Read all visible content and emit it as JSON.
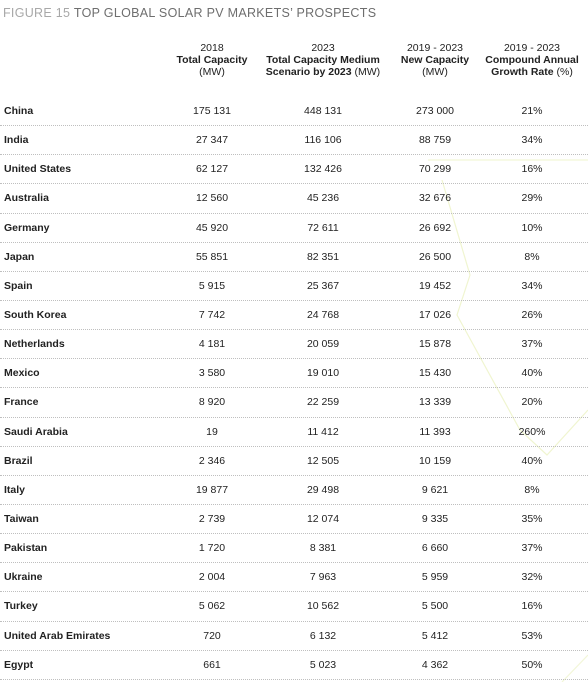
{
  "figure": {
    "label": "FIGURE 15",
    "title": "TOP GLOBAL SOLAR PV MARKETS’ PROSPECTS"
  },
  "columns": [
    {
      "year": "2018",
      "name": "Total Capacity",
      "unit": "(MW)"
    },
    {
      "year": "2023",
      "name": "Total Capacity Medium Scenario by 2023",
      "unit": "(MW)"
    },
    {
      "year": "2019 - 2023",
      "name": "New Capacity",
      "unit": "(MW)"
    },
    {
      "year": "2019 - 2023",
      "name": "Compound Annual Growth Rate",
      "unit": "(%)"
    }
  ],
  "rows": [
    {
      "country": "China",
      "total_2018": "175 131",
      "total_2023": "448 131",
      "new": "273 000",
      "cagr": "21%"
    },
    {
      "country": "India",
      "total_2018": "27 347",
      "total_2023": "116 106",
      "new": "88 759",
      "cagr": "34%"
    },
    {
      "country": "United States",
      "total_2018": "62 127",
      "total_2023": "132 426",
      "new": "70 299",
      "cagr": "16%"
    },
    {
      "country": "Australia",
      "total_2018": "12 560",
      "total_2023": "45 236",
      "new": "32 676",
      "cagr": "29%"
    },
    {
      "country": "Germany",
      "total_2018": "45 920",
      "total_2023": "72 611",
      "new": "26 692",
      "cagr": "10%"
    },
    {
      "country": "Japan",
      "total_2018": "55 851",
      "total_2023": "82 351",
      "new": "26 500",
      "cagr": "8%"
    },
    {
      "country": "Spain",
      "total_2018": "5 915",
      "total_2023": "25 367",
      "new": "19 452",
      "cagr": "34%"
    },
    {
      "country": "South Korea",
      "total_2018": "7 742",
      "total_2023": "24 768",
      "new": "17 026",
      "cagr": "26%"
    },
    {
      "country": "Netherlands",
      "total_2018": "4 181",
      "total_2023": "20 059",
      "new": "15 878",
      "cagr": "37%"
    },
    {
      "country": "Mexico",
      "total_2018": "3 580",
      "total_2023": "19 010",
      "new": "15 430",
      "cagr": "40%"
    },
    {
      "country": "France",
      "total_2018": "8 920",
      "total_2023": "22 259",
      "new": "13 339",
      "cagr": "20%"
    },
    {
      "country": "Saudi Arabia",
      "total_2018": "19",
      "total_2023": "11 412",
      "new": "11 393",
      "cagr": "260%"
    },
    {
      "country": "Brazil",
      "total_2018": "2 346",
      "total_2023": "12 505",
      "new": "10 159",
      "cagr": "40%"
    },
    {
      "country": "Italy",
      "total_2018": "19 877",
      "total_2023": "29 498",
      "new": "9 621",
      "cagr": "8%"
    },
    {
      "country": "Taiwan",
      "total_2018": "2 739",
      "total_2023": "12 074",
      "new": "9 335",
      "cagr": "35%"
    },
    {
      "country": "Pakistan",
      "total_2018": "1 720",
      "total_2023": "8 381",
      "new": "6 660",
      "cagr": "37%"
    },
    {
      "country": "Ukraine",
      "total_2018": "2 004",
      "total_2023": "7 963",
      "new": "5 959",
      "cagr": "32%"
    },
    {
      "country": "Turkey",
      "total_2018": "5 062",
      "total_2023": "10 562",
      "new": "5 500",
      "cagr": "16%"
    },
    {
      "country": "United Arab Emirates",
      "total_2018": "720",
      "total_2023": "6 132",
      "new": "5 412",
      "cagr": "53%"
    },
    {
      "country": "Egypt",
      "total_2018": "661",
      "total_2023": "5 023",
      "new": "4 362",
      "cagr": "50%"
    }
  ]
}
